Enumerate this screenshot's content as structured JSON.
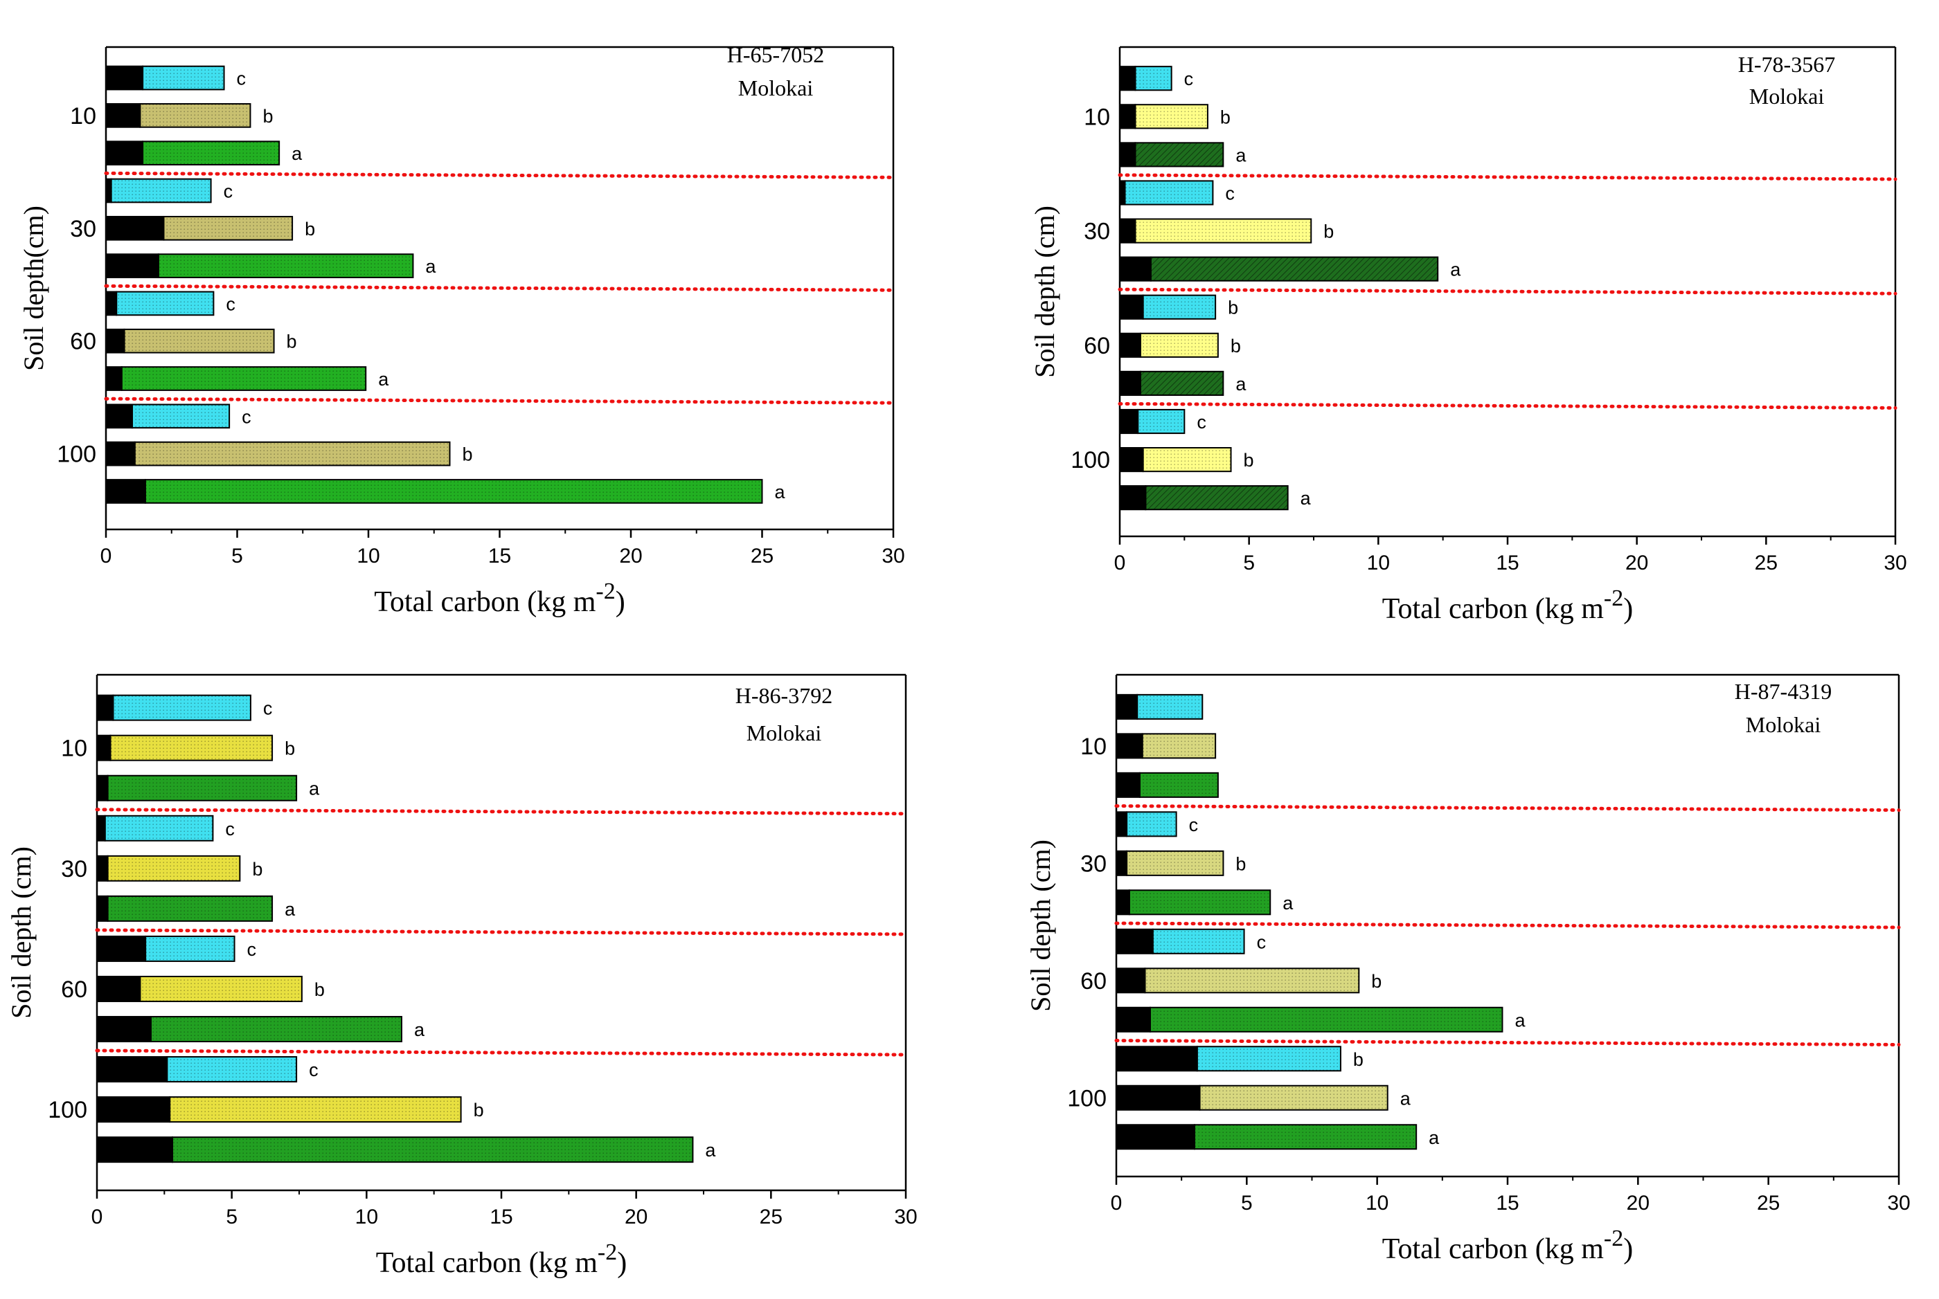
{
  "chart_data": [
    {
      "type": "bar",
      "orientation": "horizontal",
      "stacked": true,
      "title": "H-65-7052",
      "subtitle": "Molokai",
      "xlabel": "Total carbon (kg m",
      "xlabel_sup": "-2",
      "xlabel_close": ")",
      "ylabel": "Soil depth(cm)",
      "xlim": [
        0,
        30
      ],
      "xticks": [
        0,
        5,
        10,
        15,
        20,
        25,
        30
      ],
      "depth_labels": [
        "10",
        "30",
        "60",
        "100"
      ],
      "bar_colors": [
        "#40e0f0",
        "#c8c070",
        "#22b022"
      ],
      "base_color": "#000000",
      "separator_color": "#ee1111",
      "groups": [
        {
          "depth": "10",
          "bars": [
            {
              "base": 1.4,
              "total": 4.5,
              "letter": "c"
            },
            {
              "base": 1.3,
              "total": 5.5,
              "letter": "b"
            },
            {
              "base": 1.4,
              "total": 6.6,
              "letter": "a"
            }
          ]
        },
        {
          "depth": "30",
          "bars": [
            {
              "base": 0.2,
              "total": 4.0,
              "letter": "c"
            },
            {
              "base": 2.2,
              "total": 7.1,
              "letter": "b"
            },
            {
              "base": 2.0,
              "total": 11.7,
              "letter": "a"
            }
          ]
        },
        {
          "depth": "60",
          "bars": [
            {
              "base": 0.4,
              "total": 4.1,
              "letter": "c"
            },
            {
              "base": 0.7,
              "total": 6.4,
              "letter": "b"
            },
            {
              "base": 0.6,
              "total": 9.9,
              "letter": "a"
            }
          ]
        },
        {
          "depth": "100",
          "bars": [
            {
              "base": 1.0,
              "total": 4.7,
              "letter": "c"
            },
            {
              "base": 1.1,
              "total": 13.1,
              "letter": "b"
            },
            {
              "base": 1.5,
              "total": 25.0,
              "letter": "a"
            }
          ]
        }
      ]
    },
    {
      "type": "bar",
      "orientation": "horizontal",
      "stacked": true,
      "title": "H-78-3567",
      "subtitle": "Molokai",
      "xlabel": "Total carbon (kg m",
      "xlabel_sup": "-2",
      "xlabel_close": ")",
      "ylabel": "Soil depth (cm)",
      "xlim": [
        0,
        30
      ],
      "xticks": [
        0,
        5,
        10,
        15,
        20,
        25,
        30
      ],
      "depth_labels": [
        "10",
        "30",
        "60",
        "100"
      ],
      "bar_colors": [
        "#40e0f0",
        "#ffff88",
        "#1e6e1e"
      ],
      "base_color": "#000000",
      "separator_color": "#ee1111",
      "groups": [
        {
          "depth": "10",
          "bars": [
            {
              "base": 0.6,
              "total": 2.0,
              "letter": "c"
            },
            {
              "base": 0.6,
              "total": 3.4,
              "letter": "b"
            },
            {
              "base": 0.6,
              "total": 4.0,
              "letter": "a"
            }
          ]
        },
        {
          "depth": "30",
          "bars": [
            {
              "base": 0.2,
              "total": 3.6,
              "letter": "c"
            },
            {
              "base": 0.6,
              "total": 7.4,
              "letter": "b"
            },
            {
              "base": 1.2,
              "total": 12.3,
              "letter": "a"
            }
          ]
        },
        {
          "depth": "60",
          "bars": [
            {
              "base": 0.9,
              "total": 3.7,
              "letter": "b"
            },
            {
              "base": 0.8,
              "total": 3.8,
              "letter": "b"
            },
            {
              "base": 0.8,
              "total": 4.0,
              "letter": "a"
            }
          ]
        },
        {
          "depth": "100",
          "bars": [
            {
              "base": 0.7,
              "total": 2.5,
              "letter": "c"
            },
            {
              "base": 0.9,
              "total": 4.3,
              "letter": "b"
            },
            {
              "base": 1.0,
              "total": 6.5,
              "letter": "a"
            }
          ]
        }
      ]
    },
    {
      "type": "bar",
      "orientation": "horizontal",
      "stacked": true,
      "title": "H-86-3792",
      "subtitle": "Molokai",
      "xlabel": "Total carbon (kg m",
      "xlabel_sup": "-2",
      "xlabel_close": ")",
      "ylabel": "Soil depth (cm)",
      "xlim": [
        0,
        30
      ],
      "xticks": [
        0,
        5,
        10,
        15,
        20,
        25,
        30
      ],
      "depth_labels": [
        "10",
        "30",
        "60",
        "100"
      ],
      "bar_colors": [
        "#40e0f0",
        "#e8e040",
        "#22a022"
      ],
      "base_color": "#000000",
      "separator_color": "#ee1111",
      "groups": [
        {
          "depth": "10",
          "bars": [
            {
              "base": 0.6,
              "total": 5.7,
              "letter": "c"
            },
            {
              "base": 0.5,
              "total": 6.5,
              "letter": "b"
            },
            {
              "base": 0.4,
              "total": 7.4,
              "letter": "a"
            }
          ]
        },
        {
          "depth": "30",
          "bars": [
            {
              "base": 0.3,
              "total": 4.3,
              "letter": "c"
            },
            {
              "base": 0.4,
              "total": 5.3,
              "letter": "b"
            },
            {
              "base": 0.4,
              "total": 6.5,
              "letter": "a"
            }
          ]
        },
        {
          "depth": "60",
          "bars": [
            {
              "base": 1.8,
              "total": 5.1,
              "letter": "c"
            },
            {
              "base": 1.6,
              "total": 7.6,
              "letter": "b"
            },
            {
              "base": 2.0,
              "total": 11.3,
              "letter": "a"
            }
          ]
        },
        {
          "depth": "100",
          "bars": [
            {
              "base": 2.6,
              "total": 7.4,
              "letter": "c"
            },
            {
              "base": 2.7,
              "total": 13.5,
              "letter": "b"
            },
            {
              "base": 2.8,
              "total": 22.1,
              "letter": "a"
            }
          ]
        }
      ]
    },
    {
      "type": "bar",
      "orientation": "horizontal",
      "stacked": true,
      "title": "H-87-4319",
      "subtitle": "Molokai",
      "xlabel": "Total carbon (kg m",
      "xlabel_sup": "-2",
      "xlabel_close": ")",
      "ylabel": "Soil depth (cm)",
      "xlim": [
        0,
        30
      ],
      "xticks": [
        0,
        5,
        10,
        15,
        20,
        25,
        30
      ],
      "depth_labels": [
        "10",
        "30",
        "60",
        "100"
      ],
      "bar_colors": [
        "#40e0f0",
        "#d8d880",
        "#22a022"
      ],
      "base_color": "#000000",
      "separator_color": "#ee1111",
      "groups": [
        {
          "depth": "10",
          "bars": [
            {
              "base": 0.8,
              "total": 3.3,
              "letter": ""
            },
            {
              "base": 1.0,
              "total": 3.8,
              "letter": ""
            },
            {
              "base": 0.9,
              "total": 3.9,
              "letter": ""
            }
          ]
        },
        {
          "depth": "30",
          "bars": [
            {
              "base": 0.4,
              "total": 2.3,
              "letter": "c"
            },
            {
              "base": 0.4,
              "total": 4.1,
              "letter": "b"
            },
            {
              "base": 0.5,
              "total": 5.9,
              "letter": "a"
            }
          ]
        },
        {
          "depth": "60",
          "bars": [
            {
              "base": 1.4,
              "total": 4.9,
              "letter": "c"
            },
            {
              "base": 1.1,
              "total": 9.3,
              "letter": "b"
            },
            {
              "base": 1.3,
              "total": 14.8,
              "letter": "a"
            }
          ]
        },
        {
          "depth": "100",
          "bars": [
            {
              "base": 3.1,
              "total": 8.6,
              "letter": "b"
            },
            {
              "base": 3.2,
              "total": 10.4,
              "letter": "a"
            },
            {
              "base": 3.0,
              "total": 11.5,
              "letter": "a"
            }
          ]
        }
      ]
    }
  ]
}
